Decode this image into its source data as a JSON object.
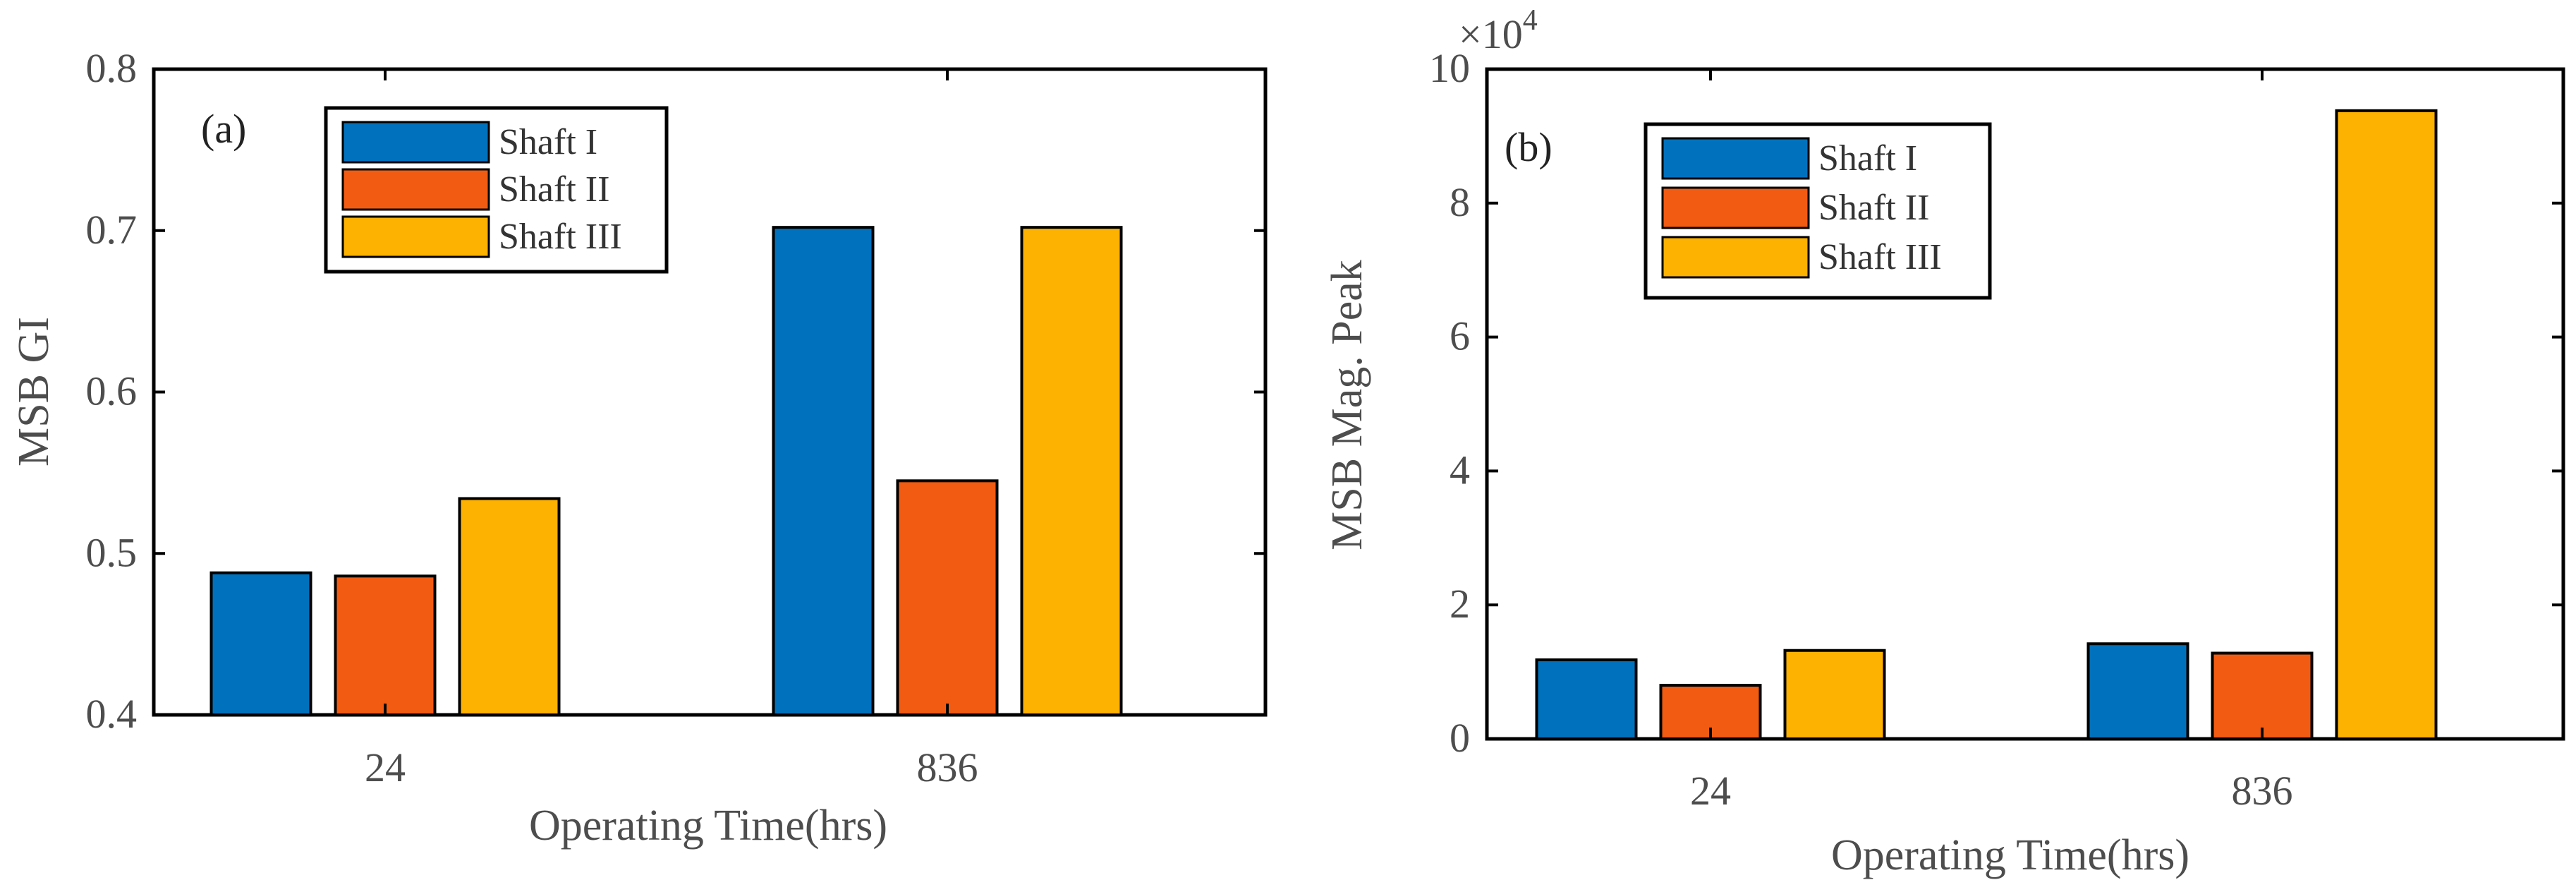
{
  "chart_data": [
    {
      "type": "bar",
      "panel_label": "(a)",
      "categories": [
        "24",
        "836"
      ],
      "series": [
        {
          "name": "Shaft I",
          "values": [
            0.488,
            0.702
          ]
        },
        {
          "name": "Shaft II",
          "values": [
            0.486,
            0.545
          ]
        },
        {
          "name": "Shaft III",
          "values": [
            0.534,
            0.702
          ]
        }
      ],
      "xlabel": "Operating Time(hrs)",
      "ylabel": "MSB GI",
      "ylim": [
        0.4,
        0.8
      ],
      "yticks": [
        0.4,
        0.5,
        0.6,
        0.7,
        0.8
      ],
      "ytick_labels": [
        "0.4",
        "0.5",
        "0.6",
        "0.7",
        "0.8"
      ],
      "y_exponent_label": "",
      "legend_position": "top-left"
    },
    {
      "type": "bar",
      "panel_label": "(b)",
      "categories": [
        "24",
        "836"
      ],
      "series": [
        {
          "name": "Shaft I",
          "values": [
            11800,
            14200
          ]
        },
        {
          "name": "Shaft II",
          "values": [
            8000,
            12800
          ]
        },
        {
          "name": "Shaft III",
          "values": [
            13200,
            93800
          ]
        }
      ],
      "xlabel": "Operating Time(hrs)",
      "ylabel": "MSB Mag. Peak",
      "ylim": [
        0,
        100000
      ],
      "yticks": [
        0,
        20000,
        40000,
        60000,
        80000,
        100000
      ],
      "ytick_labels": [
        "0",
        "2",
        "4",
        "6",
        "8",
        "10"
      ],
      "y_exponent_label": "×10",
      "y_exponent_power": "4",
      "legend_position": "top-left"
    }
  ],
  "colors": {
    "series": [
      "#0072BD",
      "#F25B12",
      "#FDB100"
    ],
    "axis": "#000000",
    "text": "#4d4d4d"
  }
}
